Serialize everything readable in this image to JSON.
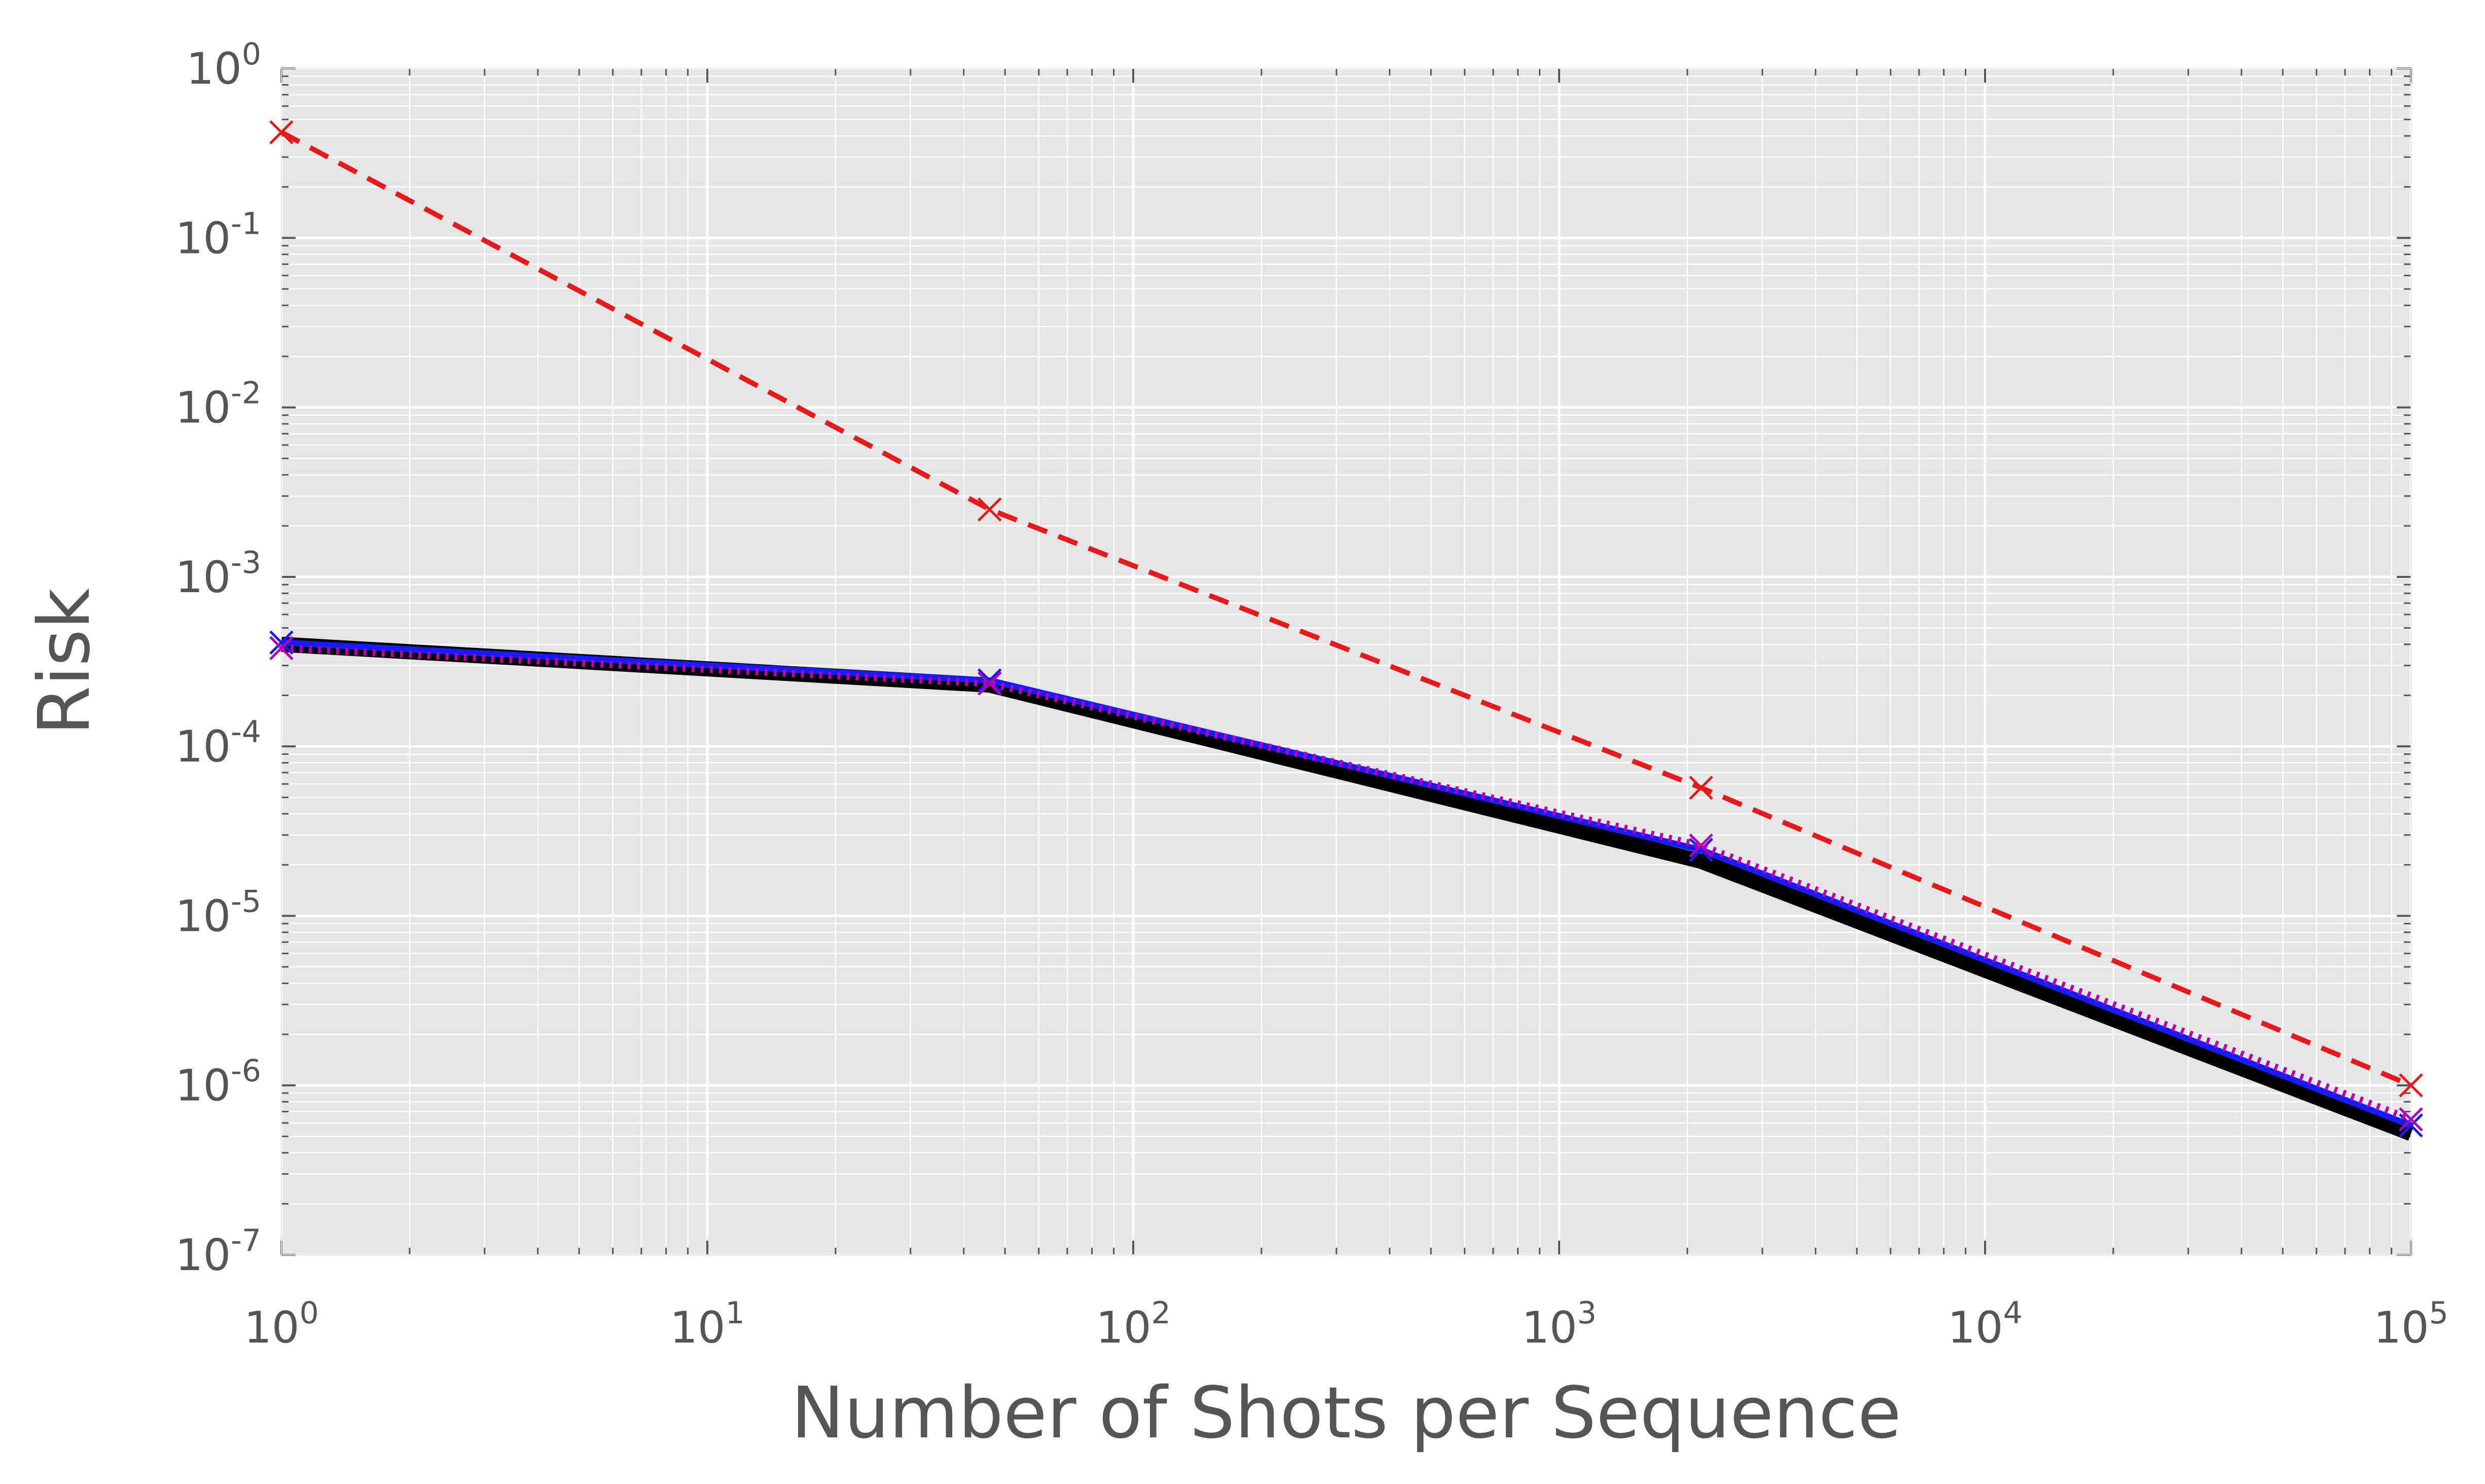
{
  "chart_data": {
    "type": "line",
    "title": "",
    "xlabel": "Number of Shots per Sequence",
    "ylabel": "Risk",
    "xscale": "log",
    "yscale": "log",
    "xlim": [
      1,
      100000
    ],
    "ylim": [
      1e-07,
      1
    ],
    "grid": true,
    "background": "#e5e5e5",
    "x_ticks": [
      {
        "base": "10",
        "exp": "0",
        "value": 1
      },
      {
        "base": "10",
        "exp": "1",
        "value": 10
      },
      {
        "base": "10",
        "exp": "2",
        "value": 100
      },
      {
        "base": "10",
        "exp": "3",
        "value": 1000
      },
      {
        "base": "10",
        "exp": "4",
        "value": 10000
      },
      {
        "base": "10",
        "exp": "5",
        "value": 100000
      }
    ],
    "y_ticks": [
      {
        "base": "10",
        "exp": "0",
        "value": 1
      },
      {
        "base": "10",
        "exp": "-1",
        "value": 0.1
      },
      {
        "base": "10",
        "exp": "-2",
        "value": 0.01
      },
      {
        "base": "10",
        "exp": "-3",
        "value": 0.001
      },
      {
        "base": "10",
        "exp": "-4",
        "value": 0.0001
      },
      {
        "base": "10",
        "exp": "-5",
        "value": 1e-05
      },
      {
        "base": "10",
        "exp": "-6",
        "value": 1e-06
      },
      {
        "base": "10",
        "exp": "-7",
        "value": 1e-07
      }
    ],
    "series": [
      {
        "color": "#e41a1c",
        "style": "dashed",
        "marker": "x",
        "x": [
          1,
          46,
          2154,
          100000
        ],
        "y": [
          0.42,
          0.0025,
          5.7e-05,
          1e-06
        ]
      },
      {
        "color": "#000000",
        "style": "solid",
        "marker": "none",
        "x": [
          1,
          46,
          2154,
          100000
        ],
        "y": [
          0.0004,
          0.00023,
          2.1e-05,
          5.2e-07
        ]
      },
      {
        "color": "#1a1aff",
        "style": "solid",
        "marker": "x",
        "x": [
          1,
          46,
          2154,
          100000
        ],
        "y": [
          0.00041,
          0.000245,
          2.45e-05,
          5.8e-07
        ]
      },
      {
        "color": "#b300b3",
        "style": "dotted",
        "marker": "x",
        "x": [
          1,
          46,
          2154,
          100000
        ],
        "y": [
          0.00038,
          0.000235,
          2.6e-05,
          6.3e-07
        ]
      }
    ]
  }
}
